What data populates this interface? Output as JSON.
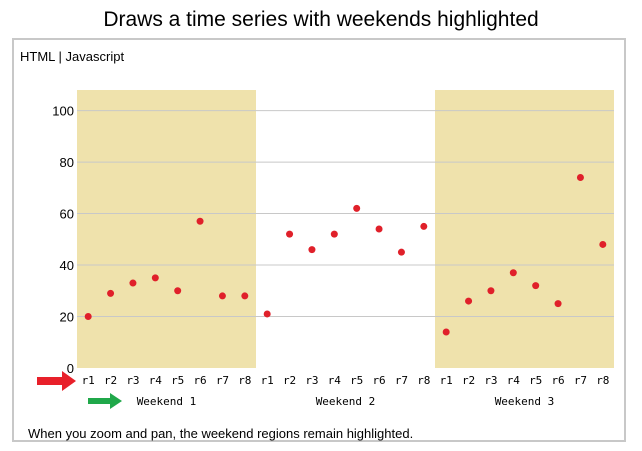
{
  "page": {
    "title": "Draws a time series with weekends highlighted",
    "tab_html": "HTML",
    "tab_sep": "|",
    "tab_js": "Javascript",
    "footer": "When you zoom and pan, the weekend regions remain highlighted."
  },
  "colors": {
    "weekend_band": "#efe2ac",
    "point": "#e0202a",
    "gridline": "#c8c8c8",
    "x_arrow": "#e8202a",
    "group_arrow": "#20a84a"
  },
  "chart_data": {
    "type": "scatter",
    "title": "",
    "xlabel": "",
    "ylabel": "",
    "ylim": [
      0,
      108
    ],
    "yticks": [
      0,
      20,
      40,
      60,
      80,
      100
    ],
    "grid": true,
    "groups": [
      {
        "label": "Weekend 1",
        "highlighted": true,
        "categories": [
          "r1",
          "r2",
          "r3",
          "r4",
          "r5",
          "r6",
          "r7",
          "r8"
        ],
        "values": [
          20,
          29,
          33,
          35,
          30,
          57,
          28,
          28
        ]
      },
      {
        "label": "Weekend 2",
        "highlighted": false,
        "categories": [
          "r1",
          "r2",
          "r3",
          "r4",
          "r5",
          "r6",
          "r7",
          "r8"
        ],
        "values": [
          21,
          52,
          46,
          52,
          62,
          54,
          45,
          55
        ]
      },
      {
        "label": "Weekend 3",
        "highlighted": true,
        "categories": [
          "r1",
          "r2",
          "r3",
          "r4",
          "r5",
          "r6",
          "r7",
          "r8"
        ],
        "values": [
          14,
          26,
          30,
          37,
          32,
          25,
          74,
          48
        ]
      }
    ]
  }
}
